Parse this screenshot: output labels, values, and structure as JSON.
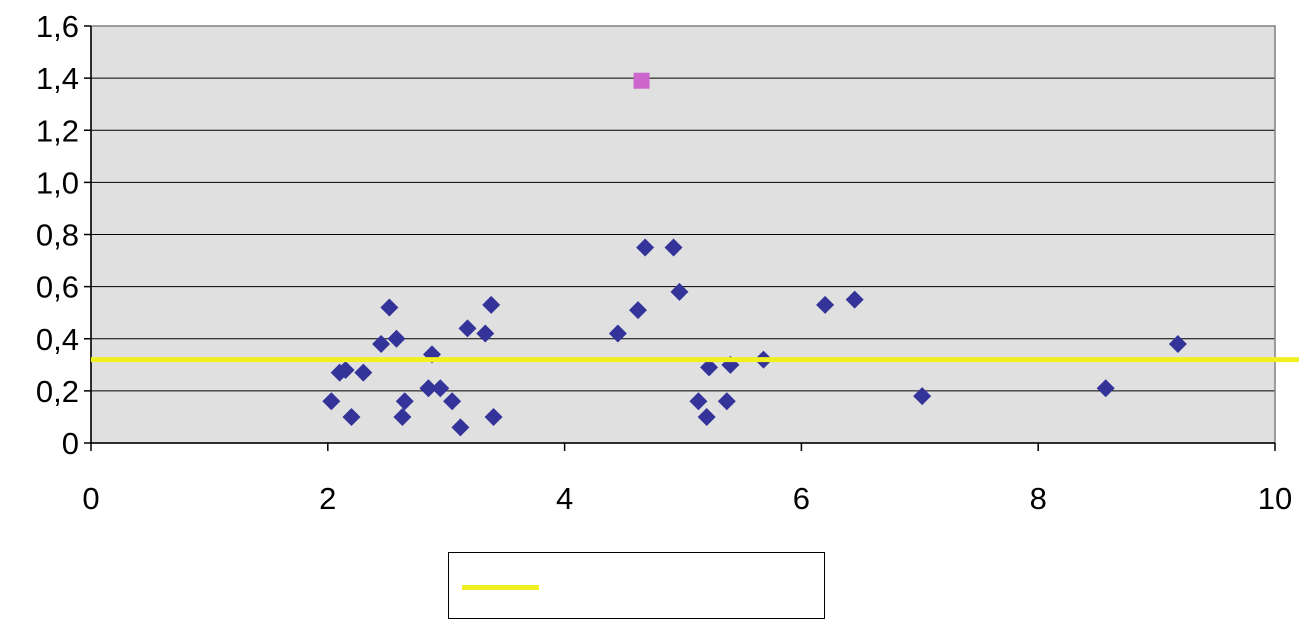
{
  "chart_data": {
    "type": "scatter",
    "title": "",
    "xlabel": "",
    "ylabel": "",
    "xlim": [
      0,
      10
    ],
    "ylim": [
      0,
      1.6
    ],
    "x_ticks": [
      0,
      2,
      4,
      6,
      8,
      10
    ],
    "y_ticks": [
      0,
      0.2,
      0.4,
      0.6,
      0.8,
      1.0,
      1.2,
      1.4,
      1.6
    ],
    "x_tick_labels": [
      "0",
      "2",
      "4",
      "6",
      "8",
      "10"
    ],
    "y_tick_labels": [
      "0",
      "0,2",
      "0,4",
      "0,6",
      "0,8",
      "1,0",
      "1,2",
      "1,4",
      "1,6"
    ],
    "grid": "horizontal",
    "plot_background": "#e0e0e0",
    "series": [
      {
        "marker": "diamond",
        "color": "#333399",
        "points": [
          [
            2.03,
            0.16
          ],
          [
            2.1,
            0.27
          ],
          [
            2.15,
            0.28
          ],
          [
            2.2,
            0.1
          ],
          [
            2.3,
            0.27
          ],
          [
            2.45,
            0.38
          ],
          [
            2.52,
            0.52
          ],
          [
            2.58,
            0.4
          ],
          [
            2.63,
            0.1
          ],
          [
            2.65,
            0.16
          ],
          [
            2.85,
            0.21
          ],
          [
            2.88,
            0.34
          ],
          [
            2.95,
            0.21
          ],
          [
            3.05,
            0.16
          ],
          [
            3.12,
            0.06
          ],
          [
            3.18,
            0.44
          ],
          [
            3.33,
            0.42
          ],
          [
            3.38,
            0.53
          ],
          [
            3.4,
            0.1
          ],
          [
            4.45,
            0.42
          ],
          [
            4.62,
            0.51
          ],
          [
            4.68,
            0.75
          ],
          [
            4.92,
            0.75
          ],
          [
            4.97,
            0.58
          ],
          [
            5.13,
            0.16
          ],
          [
            5.2,
            0.1
          ],
          [
            5.22,
            0.29
          ],
          [
            5.37,
            0.16
          ],
          [
            5.4,
            0.3
          ],
          [
            5.68,
            0.32
          ],
          [
            6.2,
            0.53
          ],
          [
            6.45,
            0.55
          ],
          [
            7.02,
            0.18
          ],
          [
            8.57,
            0.21
          ],
          [
            9.18,
            0.38
          ]
        ]
      },
      {
        "marker": "square",
        "color": "#cc66cc",
        "points": [
          [
            4.65,
            1.39
          ]
        ]
      }
    ],
    "reference_lines": [
      {
        "orientation": "horizontal",
        "y": 0.32,
        "color": "#f0f020",
        "label": ""
      }
    ],
    "legend": {
      "placement": "bottom-center",
      "entries": [
        {
          "label": "",
          "color": "#f0f020",
          "symbol": "line"
        }
      ]
    }
  }
}
